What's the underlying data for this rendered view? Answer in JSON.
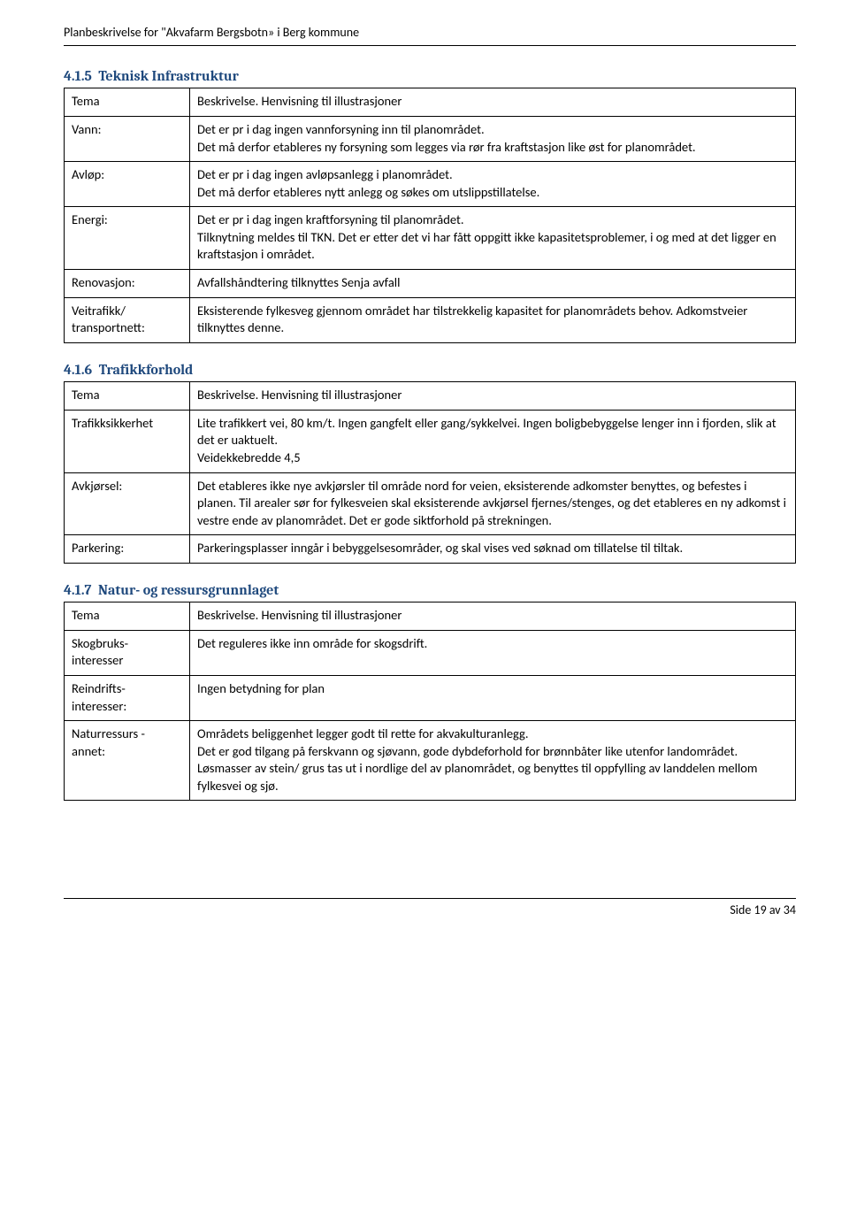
{
  "doc_header": "Planbeskrivelse for \"Akvafarm Bergsbotn» i Berg kommune",
  "footer": "Side 19 av 34",
  "colors": {
    "heading": "#1f497d",
    "text": "#000000",
    "border": "#000000",
    "background": "#ffffff"
  },
  "typography": {
    "body_font": "Calibri",
    "heading_font": "Cambria",
    "body_size_pt": 11,
    "heading_size_pt": 12
  },
  "sections": [
    {
      "number": "4.1.5",
      "title": "Teknisk Infrastruktur",
      "table": {
        "header": {
          "col1": "Tema",
          "col2": "Beskrivelse. Henvisning til illustrasjoner"
        },
        "rows": [
          {
            "label": "Vann:",
            "text": "Det er pr i dag ingen vannforsyning inn til planområdet.\nDet må derfor etableres ny forsyning som legges via rør fra kraftstasjon like øst for planområdet."
          },
          {
            "label": "Avløp:",
            "text": "Det er pr i dag ingen avløpsanlegg i planområdet.\nDet må derfor etableres nytt anlegg og søkes om utslippstillatelse."
          },
          {
            "label": "Energi:",
            "text": "Det er pr i dag ingen kraftforsyning til planområdet.\nTilknytning meldes til TKN. Det er etter det vi har fått oppgitt ikke kapasitetsproblemer, i og med at det ligger en kraftstasjon i området."
          },
          {
            "label": "Renovasjon:",
            "text": "Avfallshåndtering tilknyttes Senja avfall"
          },
          {
            "label": "Veitrafikk/\ntransportnett:",
            "text": "Eksisterende fylkesveg gjennom området har tilstrekkelig kapasitet for planområdets behov. Adkomstveier tilknyttes denne."
          }
        ]
      }
    },
    {
      "number": "4.1.6",
      "title": "Trafikkforhold",
      "table": {
        "header": {
          "col1": "Tema",
          "col2": "Beskrivelse. Henvisning til illustrasjoner"
        },
        "rows": [
          {
            "label": "Trafikksikkerhet",
            "text": "Lite trafikkert vei, 80 km/t. Ingen gangfelt eller gang/sykkelvei. Ingen boligbebyggelse lenger inn i fjorden, slik at det er uaktuelt.\nVeidekkebredde 4,5"
          },
          {
            "label": "Avkjørsel:",
            "text": "Det etableres ikke nye avkjørsler til område nord for veien, eksisterende adkomster benyttes, og befestes i planen. Til arealer sør for fylkesveien skal eksisterende avkjørsel fjernes/stenges, og det etableres en ny adkomst i vestre ende av planområdet. Det er gode siktforhold på strekningen."
          },
          {
            "label": "Parkering:",
            "text": "Parkeringsplasser inngår i bebyggelsesområder, og skal vises ved søknad om tillatelse til tiltak."
          }
        ]
      }
    },
    {
      "number": "4.1.7",
      "title": "Natur- og ressursgrunnlaget",
      "table": {
        "header": {
          "col1": "Tema",
          "col2": "Beskrivelse. Henvisning til illustrasjoner"
        },
        "rows": [
          {
            "label": "Skogbruks-\ninteresser",
            "text": "Det reguleres ikke inn område for skogsdrift."
          },
          {
            "label": "Reindrifts-\ninteresser:",
            "text": "Ingen betydning for plan"
          },
          {
            "label": "Naturressurs -\nannet:",
            "text": "Områdets beliggenhet legger godt til rette for akvakulturanlegg.\nDet er god tilgang på ferskvann og sjøvann, gode dybdeforhold for brønnbåter like utenfor landområdet.\nLøsmasser av stein/ grus tas ut i nordlige del av planområdet, og benyttes til oppfylling av landdelen mellom fylkesvei og sjø."
          }
        ]
      }
    }
  ]
}
